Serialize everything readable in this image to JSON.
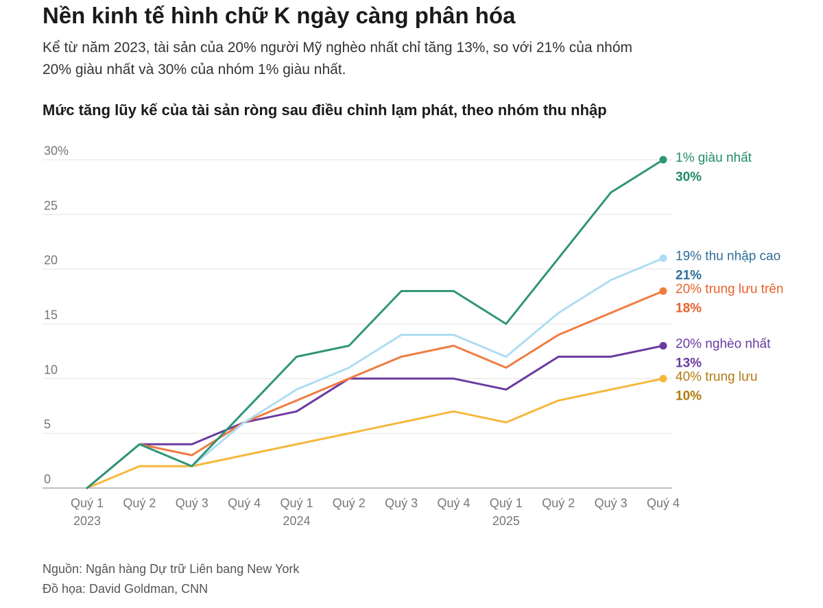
{
  "header": {
    "title": "Nền kinh tế hình chữ K ngày càng phân hóa",
    "subtitle": "Kể từ năm 2023, tài sản của 20% người Mỹ nghèo nhất chỉ tăng 13%, so với 21% của nhóm 20% giàu nhất và 30% của nhóm 1% giàu nhất."
  },
  "chart_data": {
    "type": "line",
    "title": "Mức tăng lũy kế của tài sản ròng sau điều chỉnh lạm phát, theo nhóm thu nhập",
    "xlabel": "",
    "ylabel": "",
    "ylim": [
      0,
      30
    ],
    "grid": true,
    "yticks": [
      "0",
      "5",
      "10",
      "15",
      "20",
      "25",
      "30%"
    ],
    "categories": [
      "Quý 1",
      "Quý 2",
      "Quý 3",
      "Quý 4",
      "Quý 1",
      "Quý 2",
      "Quý 3",
      "Quý 4",
      "Quý 1",
      "Quý 2",
      "Quý 3",
      "Quý 4"
    ],
    "years": [
      {
        "label": "2023",
        "index": 0
      },
      {
        "label": "2024",
        "index": 4
      },
      {
        "label": "2025",
        "index": 8
      }
    ],
    "series": [
      {
        "name": "40% trung lưu",
        "end_label": "10%",
        "color": "#f5b73b",
        "label_color": "#b07a10",
        "values": [
          0,
          2,
          2,
          3,
          4,
          5,
          6,
          7,
          6,
          8,
          9,
          10
        ]
      },
      {
        "name": "20% nghèo nhất",
        "end_label": "13%",
        "color": "#6a3aa0",
        "label_color": "#6a3aa0",
        "values": [
          0,
          4,
          4,
          6,
          7,
          10,
          10,
          10,
          9,
          12,
          12,
          13
        ]
      },
      {
        "name": "20% trung lưu trên",
        "end_label": "18%",
        "color": "#f07b3f",
        "label_color": "#e8622a",
        "values": [
          0,
          4,
          3,
          6,
          8,
          10,
          12,
          13,
          11,
          14,
          16,
          18
        ]
      },
      {
        "name": "19% thu nhập cao",
        "end_label": "21%",
        "color": "#aedcf3",
        "label_color": "#2f6c99",
        "values": [
          0,
          4,
          2,
          6,
          9,
          11,
          14,
          14,
          12,
          16,
          19,
          21
        ]
      },
      {
        "name": "1% giàu nhất",
        "end_label": "30%",
        "color": "#2e9478",
        "label_color": "#1f8a6a",
        "values": [
          0,
          4,
          2,
          7,
          12,
          13,
          18,
          18,
          15,
          21,
          27,
          30
        ]
      }
    ]
  },
  "footer": {
    "source": "Nguồn: Ngân hàng Dự trữ Liên bang New York",
    "credit": "Đồ họa: David Goldman, CNN"
  }
}
